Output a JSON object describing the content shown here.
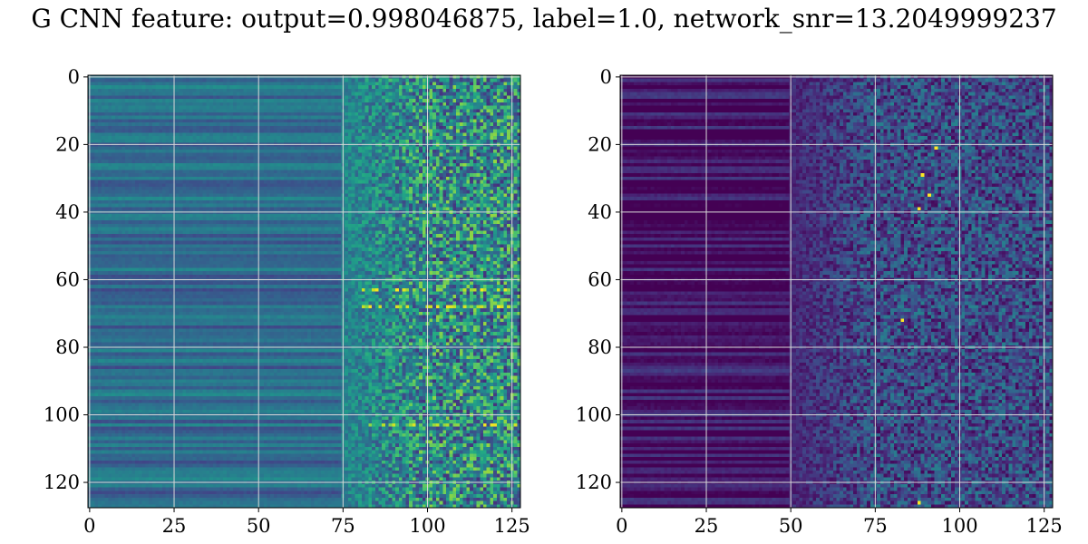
{
  "title": "G CNN feature: output=0.998046875, label=1.0, network_snr=13.2049999237",
  "chart_data": [
    {
      "type": "heatmap",
      "rows": 128,
      "cols": 128,
      "colormap": "viridis",
      "grid": true,
      "xlim": [
        0,
        127
      ],
      "ylim": [
        127,
        0
      ],
      "xticks": [
        "0",
        "25",
        "50",
        "75",
        "100",
        "125"
      ],
      "yticks": [
        "0",
        "20",
        "40",
        "60",
        "80",
        "100",
        "120"
      ],
      "description": "feature map 1: smooth blue/teal horizontal bands for columns 0-75, noisy green/teal speckle for columns 75-127, bright yellow spots near rows 63, 68 and 103",
      "background_level": 0.35,
      "noise_start_col": 75,
      "noise_level": 0.5,
      "hot_rows": [
        63,
        68,
        103
      ]
    },
    {
      "type": "heatmap",
      "rows": 128,
      "cols": 128,
      "colormap": "viridis",
      "grid": true,
      "xlim": [
        0,
        127
      ],
      "ylim": [
        127,
        0
      ],
      "xticks": [
        "0",
        "25",
        "50",
        "75",
        "100",
        "125"
      ],
      "yticks": [
        "0",
        "20",
        "40",
        "60",
        "80",
        "100",
        "120"
      ],
      "description": "feature map 2: dark purple for columns 0-50, increasing blue/green speckle for columns 50-127, isolated yellow points near (93,21), (88,39), (83,72), (88,126)",
      "background_level": 0.05,
      "noise_start_col": 50,
      "noise_level": 0.3,
      "hot_points": [
        [
          93,
          21
        ],
        [
          88,
          39
        ],
        [
          83,
          72
        ],
        [
          88,
          126
        ],
        [
          89,
          29
        ],
        [
          91,
          35
        ]
      ]
    }
  ]
}
